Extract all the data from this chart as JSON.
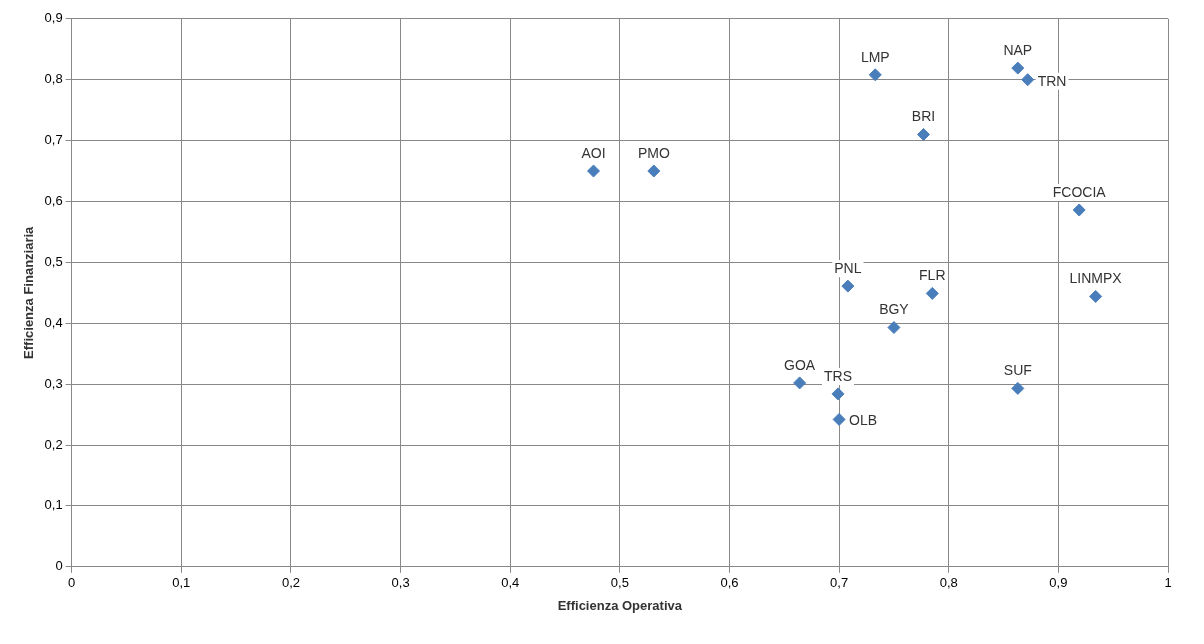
{
  "chart_data": {
    "type": "scatter",
    "xlabel": "Efficienza Operativa",
    "ylabel": "Efficienza Finanziaria",
    "x": [
      0.476,
      0.531,
      0.733,
      0.863,
      0.872,
      0.777,
      0.919,
      0.708,
      0.785,
      0.934,
      0.75,
      0.664,
      0.699,
      0.7,
      0.863
    ],
    "values": [
      0.65,
      0.65,
      0.808,
      0.819,
      0.8,
      0.71,
      0.586,
      0.461,
      0.449,
      0.444,
      0.393,
      0.302,
      0.284,
      0.242,
      0.293
    ],
    "color": "#4a7ebb",
    "marker": "diamond",
    "grid": true,
    "legend": false,
    "xlim": [
      0,
      1
    ],
    "ylim": [
      0,
      0.9
    ],
    "xticks": [
      0,
      {
        "value": 0.1,
        "label": "0,1"
      },
      {
        "value": 0.2,
        "label": "0,2"
      },
      {
        "value": 0.3,
        "label": "0,3"
      },
      {
        "value": 0.4,
        "label": "0,4"
      },
      {
        "value": 0.5,
        "label": "0,5"
      },
      {
        "value": 0.6,
        "label": "0,6"
      },
      {
        "value": 0.7,
        "label": "0,7"
      },
      {
        "value": 0.8,
        "label": "0,8"
      },
      {
        "value": 0.9,
        "label": "0,9"
      },
      1
    ],
    "yticks": [
      0,
      {
        "value": 0.1,
        "label": "0,1"
      },
      {
        "value": 0.2,
        "label": "0,2"
      },
      {
        "value": 0.3,
        "label": "0,3"
      },
      {
        "value": 0.4,
        "label": "0,4"
      },
      {
        "value": 0.5,
        "label": "0,5"
      },
      {
        "value": 0.6,
        "label": "0,6"
      },
      {
        "value": 0.7,
        "label": "0,7"
      },
      {
        "value": 0.8,
        "label": "0,8"
      },
      {
        "value": 0.9,
        "label": "0,9"
      }
    ],
    "annotations": [
      {
        "text": "AOI",
        "x": 0.476,
        "y": 0.65
      },
      {
        "text": "PMO",
        "x": 0.531,
        "y": 0.65
      },
      {
        "text": "LMP",
        "x": 0.733,
        "y": 0.808
      },
      {
        "text": "NAP",
        "x": 0.863,
        "y": 0.819
      },
      {
        "text": "TRN",
        "x": 0.872,
        "y": 0.8
      },
      {
        "text": "BRI",
        "x": 0.777,
        "y": 0.71
      },
      {
        "text": "FCOCIA",
        "x": 0.919,
        "y": 0.586
      },
      {
        "text": "PNL",
        "x": 0.708,
        "y": 0.461
      },
      {
        "text": "FLR",
        "x": 0.785,
        "y": 0.449
      },
      {
        "text": "LINMPX",
        "x": 0.934,
        "y": 0.444
      },
      {
        "text": "BGY",
        "x": 0.75,
        "y": 0.393
      },
      {
        "text": "GOA",
        "x": 0.664,
        "y": 0.302
      },
      {
        "text": "TRS",
        "x": 0.699,
        "y": 0.284
      },
      {
        "text": "OLB",
        "x": 0.7,
        "y": 0.242
      },
      {
        "text": "SUF",
        "x": 0.863,
        "y": 0.293
      }
    ]
  }
}
